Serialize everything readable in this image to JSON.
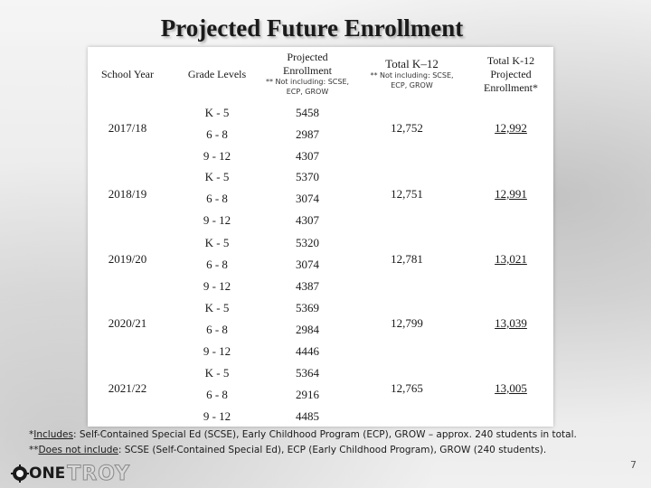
{
  "title": "Projected Future Enrollment",
  "headers": {
    "school_year": "School Year",
    "grade_levels": "Grade Levels",
    "projected_enrollment": "Projected Enrollment",
    "projected_enrollment_note": "** Not including: SCSE, ECP, GROW",
    "total_k12": "Total K–12",
    "total_k12_note": "** Not including: SCSE, ECP, GROW",
    "total_k12_projected": "Total K-12 Projected Enrollment*"
  },
  "rows": [
    {
      "year": "2017/18",
      "grades": [
        "K - 5",
        "6 - 8",
        "9 - 12"
      ],
      "enrollment": [
        "5458",
        "2987",
        "4307"
      ],
      "total": "12,752",
      "projected_total": "12,992"
    },
    {
      "year": "2018/19",
      "grades": [
        "K - 5",
        "6 - 8",
        "9 - 12"
      ],
      "enrollment": [
        "5370",
        "3074",
        "4307"
      ],
      "total": "12,751",
      "projected_total": "12,991"
    },
    {
      "year": "2019/20",
      "grades": [
        "K - 5",
        "6 - 8",
        "9 - 12"
      ],
      "enrollment": [
        "5320",
        "3074",
        "4387"
      ],
      "total": "12,781",
      "projected_total": "13,021"
    },
    {
      "year": "2020/21",
      "grades": [
        "K - 5",
        "6 - 8",
        "9 - 12"
      ],
      "enrollment": [
        "5369",
        "2984",
        "4446"
      ],
      "total": "12,799",
      "projected_total": "13,039"
    },
    {
      "year": "2021/22",
      "grades": [
        "K - 5",
        "6 - 8",
        "9 - 12"
      ],
      "enrollment": [
        "5364",
        "2916",
        "4485"
      ],
      "total": "12,765",
      "projected_total": "13,005"
    }
  ],
  "footnotes": {
    "includes_prefix": "*",
    "includes_label": "Includes",
    "includes_text": ": Self-Contained Special Ed (SCSE), Early Childhood Program (ECP), GROW – approx. 240 students in total.",
    "excludes_prefix": "**",
    "excludes_label": "Does not include",
    "excludes_text": ":  SCSE  (Self-Contained Special Ed), ECP (Early Childhood Program), GROW (240 students)."
  },
  "logo": {
    "part1": "ONE",
    "part2": "TROY"
  },
  "page_number": "7"
}
